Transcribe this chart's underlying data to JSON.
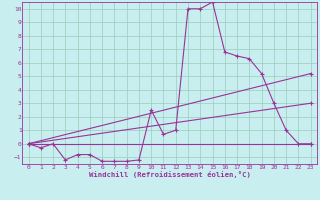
{
  "xlabel": "Windchill (Refroidissement éolien,°C)",
  "bg_color": "#c8eef0",
  "line_color": "#993399",
  "grid_color": "#99ccbb",
  "xlim": [
    -0.5,
    23.5
  ],
  "ylim": [
    -1.5,
    10.5
  ],
  "xticks": [
    0,
    1,
    2,
    3,
    4,
    5,
    6,
    7,
    8,
    9,
    10,
    11,
    12,
    13,
    14,
    15,
    16,
    17,
    18,
    19,
    20,
    21,
    22,
    23
  ],
  "yticks": [
    -1,
    0,
    1,
    2,
    3,
    4,
    5,
    6,
    7,
    8,
    9,
    10
  ],
  "main_line_x": [
    0,
    1,
    2,
    3,
    4,
    5,
    6,
    7,
    8,
    9,
    10,
    11,
    12,
    13,
    14,
    15,
    16,
    17,
    18,
    19,
    20,
    21,
    22,
    23
  ],
  "main_line_y": [
    0,
    -0.3,
    0,
    -1.2,
    -0.8,
    -0.8,
    -1.3,
    -1.3,
    -1.3,
    -1.2,
    2.5,
    0.7,
    1.0,
    10.0,
    10.0,
    10.5,
    6.8,
    6.5,
    6.3,
    5.2,
    3.0,
    1.0,
    0.0,
    0.0
  ],
  "straight_lines": [
    {
      "x": [
        0,
        23
      ],
      "y": [
        0,
        0.0
      ]
    },
    {
      "x": [
        0,
        23
      ],
      "y": [
        0,
        3.0
      ]
    },
    {
      "x": [
        0,
        23
      ],
      "y": [
        0,
        5.2
      ]
    }
  ]
}
